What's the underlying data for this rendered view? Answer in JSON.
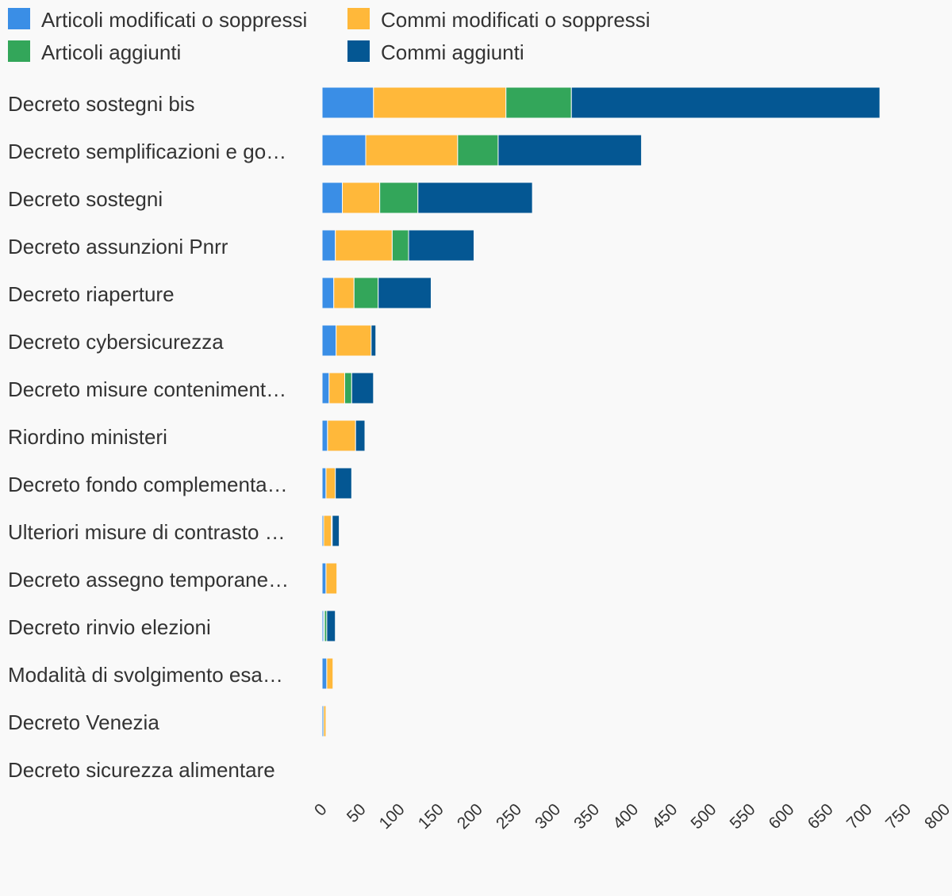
{
  "chart_data": {
    "type": "bar",
    "orientation": "horizontal",
    "stacked": true,
    "title": "",
    "xlabel": "",
    "ylabel": "",
    "xlim": [
      0,
      800
    ],
    "grid": false,
    "legend_position": "top-left",
    "ticks": [
      "0",
      "50",
      "100",
      "150",
      "200",
      "250",
      "300",
      "350",
      "400",
      "450",
      "500",
      "550",
      "600",
      "650",
      "700",
      "750",
      "800"
    ],
    "tick_values": [
      0,
      50,
      100,
      150,
      200,
      250,
      300,
      350,
      400,
      450,
      500,
      550,
      600,
      650,
      700,
      750,
      800
    ],
    "categories": [
      "Decreto sostegni bis",
      "Decreto semplificazioni e go…",
      "Decreto sostegni",
      "Decreto assunzioni Pnrr",
      "Decreto riaperture",
      "Decreto cybersicurezza",
      "Decreto misure conteniment…",
      "Riordino ministeri",
      "Decreto fondo complementa…",
      "Ulteriori misure di contrasto …",
      "Decreto assegno temporane…",
      "Decreto rinvio elezioni",
      "Modalità di svolgimento esa…",
      "Decreto Venezia",
      "Decreto sicurezza alimentare"
    ],
    "series": [
      {
        "name": "Articoli modificati o soppressi",
        "color": "#3a8ee6",
        "values": [
          66,
          56,
          26,
          17,
          15,
          18,
          9,
          7,
          5,
          2,
          5,
          2,
          6,
          2,
          1
        ]
      },
      {
        "name": "Commi modificati o soppressi",
        "color": "#ffb83a",
        "values": [
          170,
          118,
          48,
          73,
          26,
          45,
          20,
          36,
          12,
          10,
          14,
          1,
          8,
          3,
          0
        ]
      },
      {
        "name": "Articoli aggiunti",
        "color": "#33a65a",
        "values": [
          84,
          52,
          49,
          21,
          31,
          0,
          9,
          0,
          0,
          1,
          0,
          3,
          0,
          0,
          1
        ]
      },
      {
        "name": "Commi aggiunti",
        "color": "#045793",
        "values": [
          396,
          184,
          147,
          84,
          68,
          6,
          28,
          12,
          21,
          9,
          0,
          11,
          0,
          0,
          1
        ]
      }
    ]
  }
}
